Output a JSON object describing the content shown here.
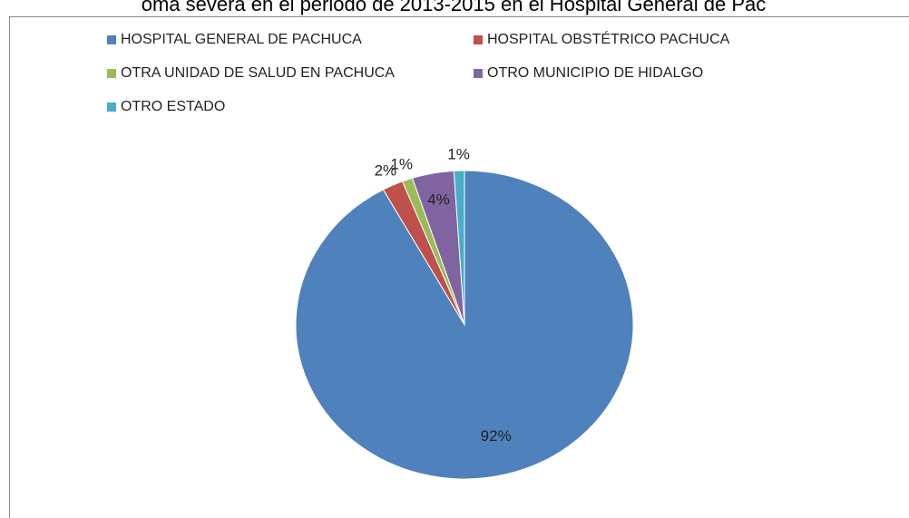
{
  "chart_data": {
    "type": "pie",
    "title": "oma severa en el periodo de 2013-2015 en el Hospital General de Pac",
    "categories": [
      "HOSPITAL GENERAL DE PACHUCA",
      "HOSPITAL OBSTÉTRICO PACHUCA",
      "OTRA UNIDAD DE SALUD EN PACHUCA",
      "OTRO MUNICIPIO DE HIDALGO",
      "OTRO ESTADO"
    ],
    "values": [
      92,
      2,
      1,
      4,
      1
    ],
    "value_labels": [
      "92%",
      "2%",
      "1%",
      "4%",
      "1%"
    ],
    "colors": [
      "#4f81bd",
      "#c0504d",
      "#9bbb59",
      "#8064a2",
      "#4bacc6"
    ],
    "legend": "top"
  }
}
